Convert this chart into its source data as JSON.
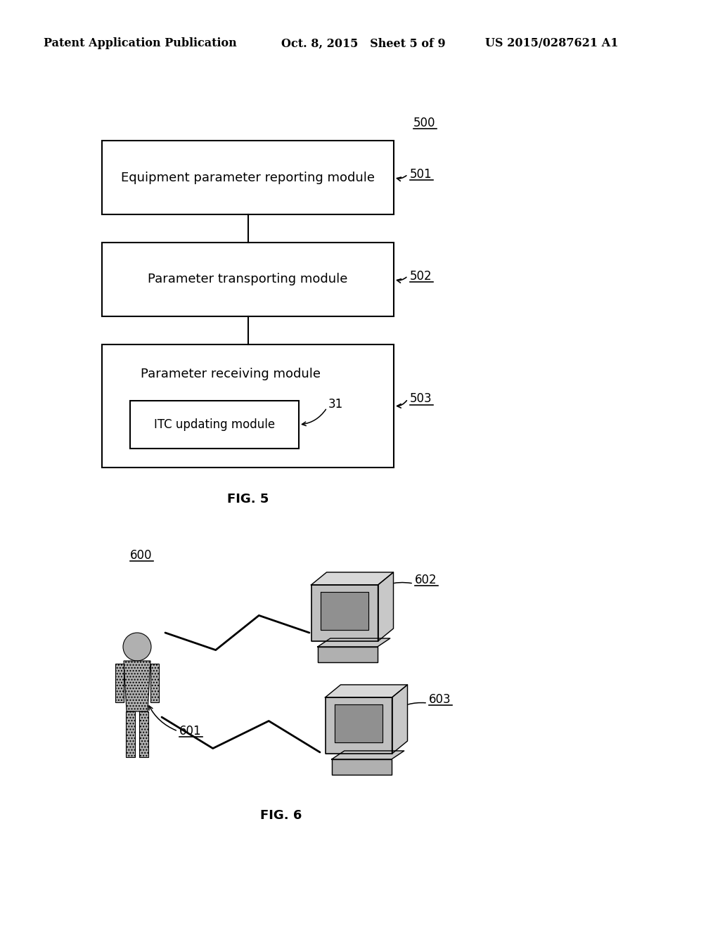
{
  "header_left": "Patent Application Publication",
  "header_mid": "Oct. 8, 2015   Sheet 5 of 9",
  "header_right": "US 2015/0287621 A1",
  "fig5_label": "FIG. 5",
  "fig6_label": "FIG. 6",
  "fig5_ref": "500",
  "box1_label": "Equipment parameter reporting module",
  "box1_ref": "501",
  "box2_label": "Parameter transporting module",
  "box2_ref": "502",
  "box3_label": "Parameter receiving module",
  "box3_ref": "503",
  "inner_box_label": "ITC updating module",
  "inner_box_ref": "31",
  "fig6_ref": "600",
  "person_ref": "601",
  "computer1_ref": "602",
  "computer2_ref": "603",
  "bg_color": "#ffffff",
  "box_color": "#000000",
  "text_color": "#000000"
}
